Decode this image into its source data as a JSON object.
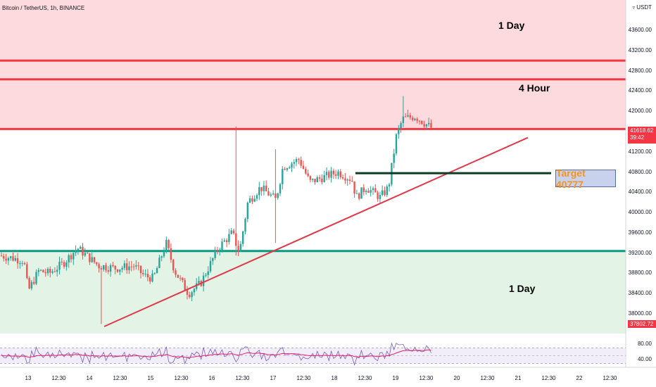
{
  "header": {
    "title": "Bitcoin / TetherUS, 1h, BINANCE"
  },
  "price_axis": {
    "currency": "USDT",
    "ticks": [
      "43600.00",
      "43200.00",
      "42800.00",
      "42400.00",
      "42000.00",
      "41200.00",
      "40800.00",
      "40400.00",
      "40000.00",
      "39600.00",
      "39200.00",
      "38800.00",
      "38400.00",
      "38000.00"
    ]
  },
  "price_tags": {
    "last_price": "41618.62",
    "countdown": "39:42",
    "low_price": "37802.72",
    "last_color": "#f23645",
    "low_color": "#f23645"
  },
  "rsi_axis": {
    "ticks": [
      "80.00",
      "40.00"
    ]
  },
  "time_axis": {
    "ticks": [
      "13",
      "12:30",
      "14",
      "12:30",
      "15",
      "12:30",
      "16",
      "12:30",
      "17",
      "12:30",
      "18",
      "12:30",
      "19",
      "12:30",
      "20",
      "12:30",
      "21",
      "12:30",
      "22",
      "12:30"
    ]
  },
  "zones": {
    "top_1d_label": "1 Day",
    "top_4h_label": "4 Hour",
    "bottom_1d_label": "1 Day",
    "label_color": "#f7931a",
    "resistance_fill": "#fcdadd",
    "support_fill": "#e3f3e6",
    "red_line": "#f23645",
    "green_line": "#089981"
  },
  "target": {
    "label": "Target 40777",
    "value": 40777
  },
  "colors": {
    "up": "#26a69a",
    "down": "#ef5350",
    "trendline": "#e03a4a"
  },
  "chart_data": {
    "type": "candlestick",
    "symbol": "Bitcoin / TetherUS",
    "interval": "1h",
    "exchange": "BINANCE",
    "ylim": [
      37700,
      44000
    ],
    "levels": [
      {
        "label": "1 Day",
        "value": 43000
      },
      {
        "label": "4 Hour",
        "value": 42630
      },
      {
        "label": "",
        "value": 41650
      },
      {
        "label": "1 Day",
        "value": 39240
      },
      {
        "label": "Target 40777",
        "value": 40777
      }
    ],
    "trendline": [
      [
        37750,
        0
      ],
      [
        41480,
        1
      ]
    ],
    "key_prices": [
      {
        "label": "series_start",
        "value": 39150
      },
      {
        "label": "drop_low",
        "value": 37800
      },
      {
        "label": "day16_spike",
        "value": 41600
      },
      {
        "label": "day17_high",
        "value": 41300
      },
      {
        "label": "day18_low",
        "value": 40250
      },
      {
        "label": "peak",
        "value": 42350
      },
      {
        "label": "last",
        "value": 41618.62
      }
    ],
    "rsi": {
      "ylim": [
        20,
        100
      ],
      "upper": 70,
      "middle": 50,
      "lower": 30
    }
  }
}
